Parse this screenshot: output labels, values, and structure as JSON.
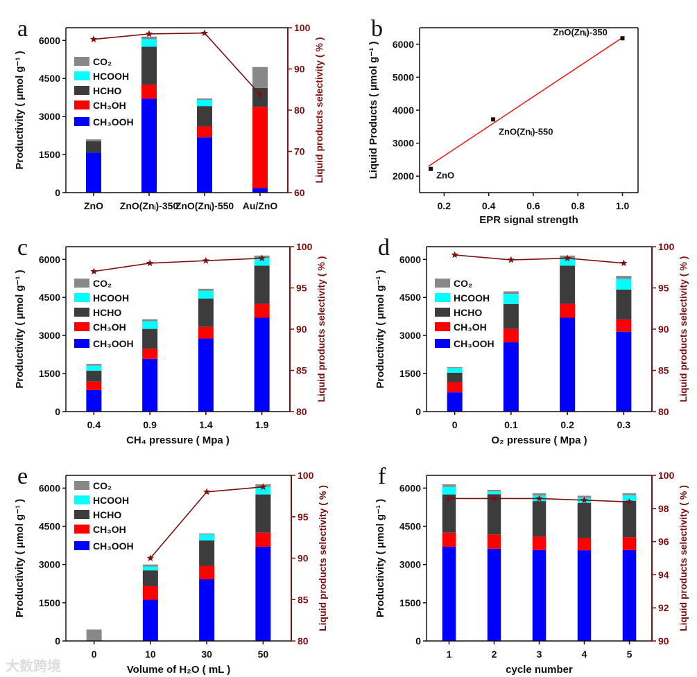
{
  "colors": {
    "CH3OOH": "#0000ff",
    "CH3OH": "#ff0000",
    "HCHO": "#3c3c3c",
    "HCOOH": "#00ffff",
    "CO2": "#888888",
    "selectivity": "#7b1010",
    "fit": "#e82020"
  },
  "legend": [
    "CO₂",
    "HCOOH",
    "HCHO",
    "CH₃OH",
    "CH₃OOH"
  ],
  "watermark": "大数跨境",
  "chart_data": [
    {
      "panel": "a",
      "type": "bar",
      "stacked": true,
      "categories": [
        "ZnO",
        "ZnO(Znᵢ)-350",
        "ZnO(Znᵢ)-550",
        "Au/ZnO"
      ],
      "series": [
        {
          "name": "CH3OOH",
          "values": [
            1580,
            3700,
            2180,
            180
          ]
        },
        {
          "name": "CH3OH",
          "values": [
            0,
            550,
            430,
            3200
          ]
        },
        {
          "name": "HCHO",
          "values": [
            450,
            1500,
            800,
            750
          ]
        },
        {
          "name": "HCOOH",
          "values": [
            0,
            300,
            250,
            0
          ]
        },
        {
          "name": "CO2",
          "values": [
            70,
            100,
            50,
            820
          ]
        }
      ],
      "selectivity": [
        97.2,
        98.5,
        98.7,
        83.8
      ],
      "xlabel": "",
      "ylabel": "Productivity ( μmol g⁻¹ )",
      "y2label": "Liquid products selectivity ( % )",
      "ylim": [
        0,
        6500
      ],
      "yticks": [
        "0",
        "1500",
        "3000",
        "4500",
        "6000"
      ],
      "y2lim": [
        60,
        100
      ],
      "y2ticks": [
        "60",
        "70",
        "80",
        "90",
        "100"
      ],
      "legend": "top-left"
    },
    {
      "panel": "b",
      "type": "scatter",
      "x": [
        0.14,
        0.42,
        1.0
      ],
      "y": [
        2220,
        3720,
        6180
      ],
      "point_labels": [
        "ZnO",
        "ZnO(Znᵢ)-550",
        "ZnO(Znᵢ)-350"
      ],
      "fit": [
        [
          0.13,
          2300
        ],
        [
          1.0,
          6200
        ]
      ],
      "xlabel": "EPR signal strength",
      "ylabel": "Liquid Products ( μmol g⁻¹ )",
      "xlim": [
        0.09,
        1.07
      ],
      "xticks": [
        "0.2",
        "0.4",
        "0.6",
        "0.8",
        "1.0"
      ],
      "ylim": [
        1500,
        6500
      ],
      "yticks": [
        "2000",
        "3000",
        "4000",
        "5000",
        "6000"
      ]
    },
    {
      "panel": "c",
      "type": "bar",
      "stacked": true,
      "categories": [
        "0.4",
        "0.9",
        "1.4",
        "1.9"
      ],
      "series": [
        {
          "name": "CH3OOH",
          "values": [
            850,
            2080,
            2880,
            3700
          ]
        },
        {
          "name": "CH3OH",
          "values": [
            330,
            400,
            460,
            550
          ]
        },
        {
          "name": "HCHO",
          "values": [
            430,
            780,
            1120,
            1500
          ]
        },
        {
          "name": "HCOOH",
          "values": [
            200,
            300,
            300,
            300
          ]
        },
        {
          "name": "CO2",
          "values": [
            70,
            80,
            80,
            100
          ]
        }
      ],
      "selectivity": [
        97.0,
        98.0,
        98.3,
        98.6
      ],
      "xlabel": "CH₄ pressure ( Mpa )",
      "ylabel": "Productivity ( μmol g⁻¹ )",
      "y2label": "Liquid products selectivity ( % )",
      "ylim": [
        0,
        6500
      ],
      "yticks": [
        "0",
        "1500",
        "3000",
        "4500",
        "6000"
      ],
      "y2lim": [
        80,
        100
      ],
      "y2ticks": [
        "80",
        "85",
        "90",
        "95",
        "100"
      ],
      "legend": "left"
    },
    {
      "panel": "d",
      "type": "bar",
      "stacked": true,
      "categories": [
        "0",
        "0.1",
        "0.2",
        "0.3"
      ],
      "series": [
        {
          "name": "CH3OOH",
          "values": [
            760,
            2730,
            3700,
            3150
          ]
        },
        {
          "name": "CH3OH",
          "values": [
            400,
            530,
            550,
            480
          ]
        },
        {
          "name": "HCHO",
          "values": [
            370,
            980,
            1500,
            1180
          ]
        },
        {
          "name": "HCOOH",
          "values": [
            180,
            400,
            300,
            420
          ]
        },
        {
          "name": "CO2",
          "values": [
            40,
            100,
            100,
            120
          ]
        }
      ],
      "selectivity": [
        99.0,
        98.4,
        98.6,
        98.0
      ],
      "xlabel": "O₂ pressure ( Mpa )",
      "ylabel": "Productivity ( μmol g⁻¹ )",
      "y2label": "Liquid products selectivity ( % )",
      "ylim": [
        0,
        6500
      ],
      "yticks": [
        "0",
        "1500",
        "3000",
        "4500",
        "6000"
      ],
      "y2lim": [
        80,
        100
      ],
      "y2ticks": [
        "80",
        "85",
        "90",
        "95",
        "100"
      ],
      "legend": "left"
    },
    {
      "panel": "e",
      "type": "bar",
      "stacked": true,
      "categories": [
        "0",
        "10",
        "30",
        "50"
      ],
      "series": [
        {
          "name": "CH3OOH",
          "values": [
            0,
            1620,
            2420,
            3700
          ]
        },
        {
          "name": "CH3OH",
          "values": [
            0,
            530,
            530,
            550
          ]
        },
        {
          "name": "HCHO",
          "values": [
            0,
            620,
            1000,
            1500
          ]
        },
        {
          "name": "HCOOH",
          "values": [
            0,
            150,
            230,
            300
          ]
        },
        {
          "name": "CO2",
          "values": [
            450,
            80,
            40,
            100
          ]
        }
      ],
      "selectivity": [
        null,
        90.0,
        98.0,
        98.6
      ],
      "xlabel": "Volume of H₂O ( mL )",
      "ylabel": "Productivity ( μmol g⁻¹ )",
      "y2label": "Liquid products selectivity ( % )",
      "ylim": [
        0,
        6500
      ],
      "yticks": [
        "0",
        "1500",
        "3000",
        "4500",
        "6000"
      ],
      "y2lim": [
        80,
        100
      ],
      "y2ticks": [
        "80",
        "85",
        "90",
        "95",
        "100"
      ],
      "legend": "top-left"
    },
    {
      "panel": "f",
      "type": "bar",
      "stacked": true,
      "categories": [
        "1",
        "2",
        "3",
        "4",
        "5"
      ],
      "series": [
        {
          "name": "CH3OOH",
          "values": [
            3700,
            3620,
            3570,
            3560,
            3570
          ]
        },
        {
          "name": "CH3OH",
          "values": [
            550,
            560,
            520,
            480,
            500
          ]
        },
        {
          "name": "HCHO",
          "values": [
            1500,
            1580,
            1400,
            1380,
            1430
          ]
        },
        {
          "name": "HCOOH",
          "values": [
            300,
            110,
            220,
            200,
            220
          ]
        },
        {
          "name": "CO2",
          "values": [
            100,
            60,
            90,
            80,
            80
          ]
        }
      ],
      "selectivity": [
        98.6,
        98.6,
        98.6,
        98.5,
        98.4
      ],
      "xlabel": "cycle number",
      "ylabel": "Productivity ( μmol g⁻¹ )",
      "y2label": "Liquid products selectivity ( % )",
      "ylim": [
        0,
        6500
      ],
      "yticks": [
        "0",
        "1500",
        "3000",
        "4500",
        "6000"
      ],
      "y2lim": [
        90,
        100
      ],
      "y2ticks": [
        "90",
        "92",
        "94",
        "96",
        "98",
        "100"
      ],
      "legend": "none"
    }
  ]
}
